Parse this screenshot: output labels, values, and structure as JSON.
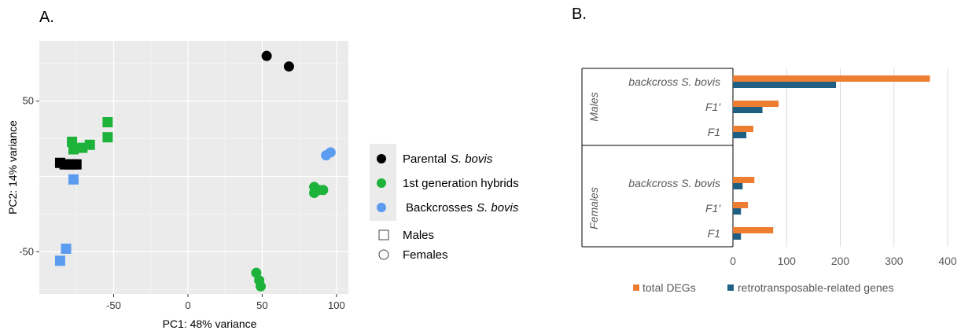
{
  "chart_data": [
    {
      "type": "scatter",
      "panel_label": "A.",
      "xlabel": "PC1: 48% variance",
      "ylabel": "PC2: 14% variance",
      "xlim": [
        -100,
        108
      ],
      "ylim": [
        -78,
        90
      ],
      "xticks": [
        -50,
        0,
        50,
        100
      ],
      "yticks": [
        -50,
        50
      ],
      "grid": true,
      "legend_position": "right",
      "legend": {
        "groups": [
          {
            "label": "Parental",
            "label_italic": "S. bovis",
            "color": "#000000"
          },
          {
            "label": "1st generation hybrids",
            "label_italic": "",
            "color": "#1db33b"
          },
          {
            "label": "Backcrosses",
            "label_italic": "S. bovis",
            "color": "#5b9cf0"
          }
        ],
        "shapes": [
          {
            "label": "Males",
            "shape": "square"
          },
          {
            "label": "Females",
            "shape": "circle"
          }
        ]
      },
      "series": [
        {
          "group": "Parental",
          "sex": "Females",
          "shape": "circle",
          "color": "#000000",
          "points": [
            [
              53,
              80
            ],
            [
              68,
              73
            ]
          ]
        },
        {
          "group": "Parental",
          "sex": "Males",
          "shape": "square",
          "color": "#000000",
          "points": [
            [
              -86,
              9
            ],
            [
              -83,
              8
            ],
            [
              -80,
              8
            ],
            [
              -77,
              8
            ],
            [
              -75,
              8
            ]
          ]
        },
        {
          "group": "1st generation hybrids",
          "sex": "Males",
          "shape": "square",
          "color": "#1db33b",
          "points": [
            [
              -54,
              36
            ],
            [
              -54,
              26
            ],
            [
              -78,
              23
            ],
            [
              -77,
              18
            ],
            [
              -71,
              19
            ],
            [
              -66,
              21
            ]
          ]
        },
        {
          "group": "1st generation hybrids",
          "sex": "Females",
          "shape": "circle",
          "color": "#1db33b",
          "points": [
            [
              85,
              -7
            ],
            [
              88,
              -9
            ],
            [
              91,
              -9
            ],
            [
              85,
              -11
            ],
            [
              46,
              -64
            ],
            [
              48,
              -69
            ],
            [
              49,
              -73
            ]
          ]
        },
        {
          "group": "Backcrosses",
          "sex": "Males",
          "shape": "square",
          "color": "#5b9cf0",
          "points": [
            [
              -77,
              -2
            ],
            [
              -82,
              -48
            ],
            [
              -86,
              -56
            ]
          ]
        },
        {
          "group": "Backcrosses",
          "sex": "Females",
          "shape": "circle",
          "color": "#5b9cf0",
          "points": [
            [
              93,
              14
            ],
            [
              96,
              16
            ]
          ]
        }
      ]
    },
    {
      "type": "bar",
      "orientation": "horizontal",
      "panel_label": "B.",
      "xlim": [
        0,
        400
      ],
      "xticks": [
        0,
        100,
        200,
        300,
        400
      ],
      "grid": true,
      "legend_position": "bottom",
      "groups": [
        {
          "label": "Males",
          "categories": [
            "backcross S. bovis",
            "F1'",
            "F1"
          ]
        },
        {
          "label": "Females",
          "categories": [
            "backcross S. bovis",
            "F1'",
            "F1"
          ]
        }
      ],
      "series": [
        {
          "name": "total DEGs",
          "color": "#ed7d31",
          "values": [
            367,
            85,
            38,
            40,
            28,
            75
          ]
        },
        {
          "name": "retrotransposable-related genes",
          "color": "#1f5f82",
          "values": [
            192,
            55,
            25,
            18,
            15,
            15
          ]
        }
      ]
    }
  ]
}
